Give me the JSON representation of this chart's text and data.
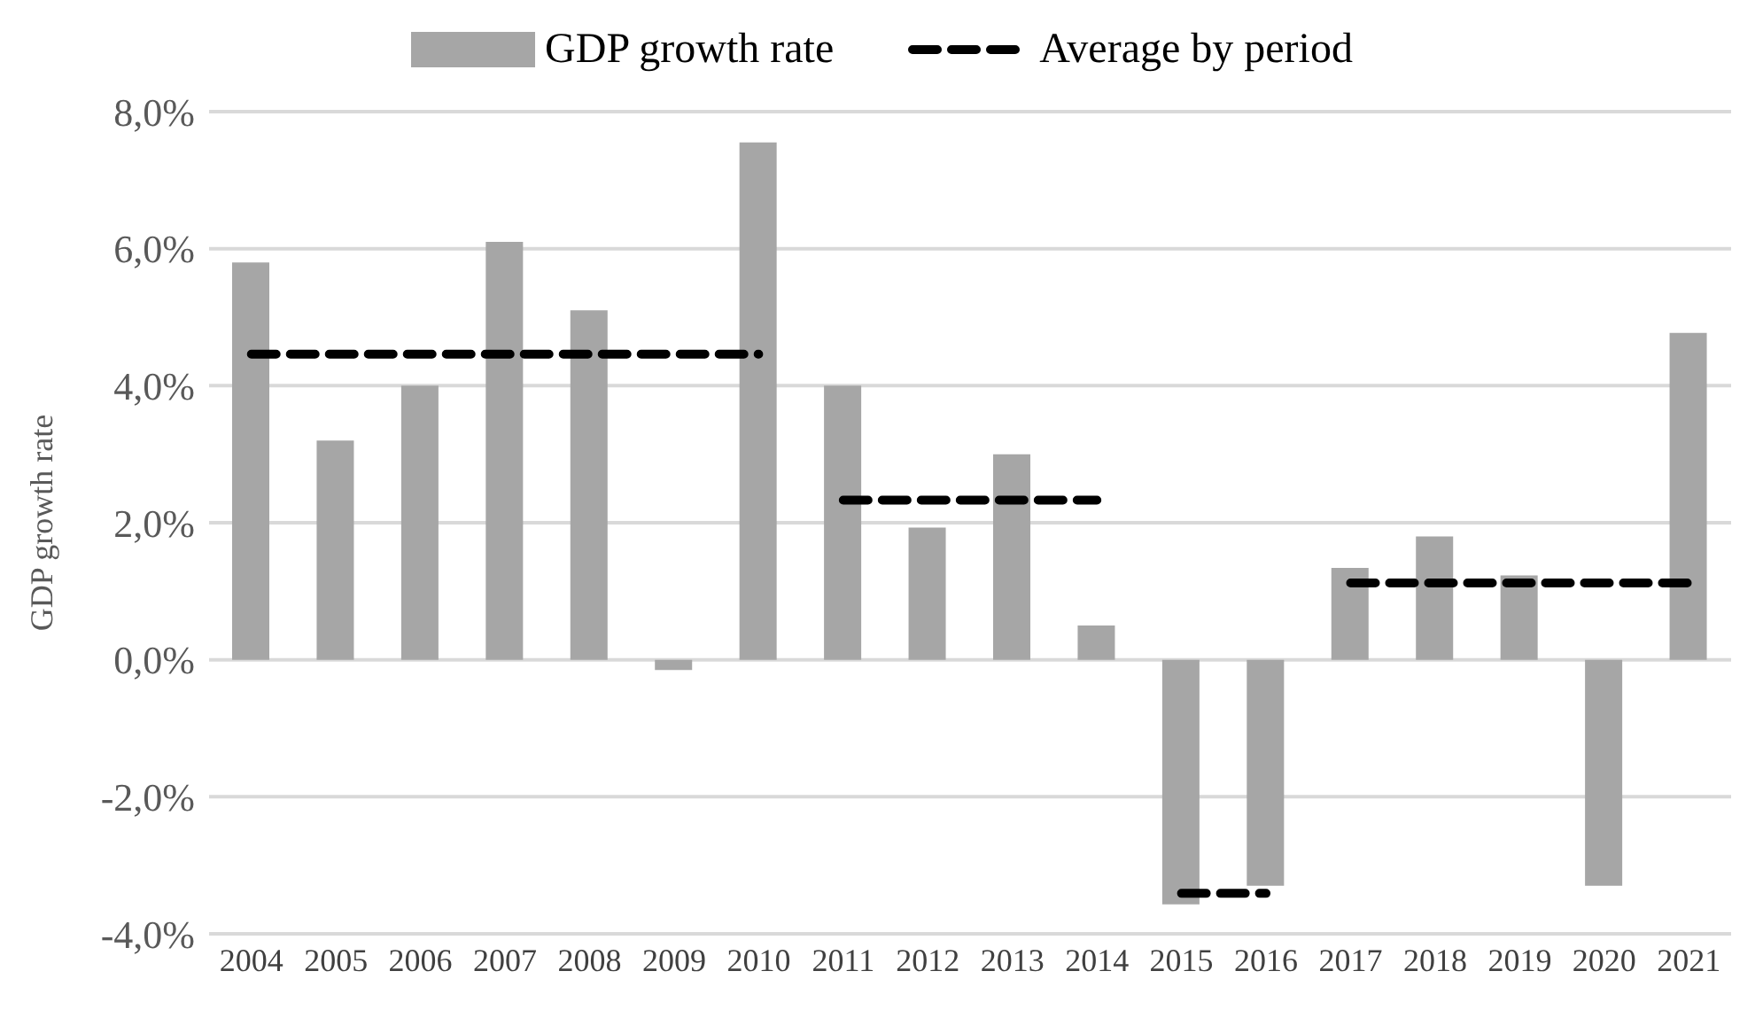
{
  "chart_data": {
    "type": "bar",
    "ylabel": "GDP growth rate",
    "categories": [
      "2004",
      "2005",
      "2006",
      "2007",
      "2008",
      "2009",
      "2010",
      "2011",
      "2012",
      "2013",
      "2014",
      "2015",
      "2016",
      "2017",
      "2018",
      "2019",
      "2020",
      "2021"
    ],
    "series": [
      {
        "name": "GDP growth rate",
        "color": "#a6a6a6",
        "values": [
          5.8,
          3.2,
          4.0,
          6.1,
          5.1,
          -0.15,
          7.55,
          4.0,
          1.93,
          3.0,
          0.5,
          -3.57,
          -3.3,
          1.34,
          1.8,
          1.23,
          -3.3,
          4.77
        ]
      },
      {
        "name": "Average by period",
        "type": "line",
        "color": "#000000",
        "line_style": "dashed",
        "values": [
          4.46,
          4.46,
          4.46,
          4.46,
          4.46,
          4.46,
          4.46,
          null,
          null,
          null,
          null,
          null,
          null,
          null,
          null,
          null,
          null,
          null
        ]
      },
      {
        "type": "line",
        "color": "#000000",
        "line_style": "dashed",
        "values": [
          null,
          null,
          null,
          null,
          null,
          null,
          null,
          2.33,
          2.33,
          2.33,
          2.33,
          null,
          null,
          null,
          null,
          null,
          null,
          null
        ]
      },
      {
        "type": "line",
        "color": "#000000",
        "line_style": "dashed",
        "values": [
          null,
          null,
          null,
          null,
          null,
          null,
          null,
          null,
          null,
          null,
          null,
          -3.41,
          -3.41,
          null,
          null,
          null,
          null,
          null
        ]
      },
      {
        "type": "line",
        "color": "#000000",
        "line_style": "dashed",
        "values": [
          null,
          null,
          null,
          null,
          null,
          null,
          null,
          null,
          null,
          null,
          null,
          null,
          null,
          1.12,
          1.12,
          1.12,
          1.12,
          1.12
        ]
      }
    ],
    "ylim": [
      -4,
      8
    ],
    "yticks": [
      {
        "value": -4,
        "label": "-4,0%"
      },
      {
        "value": -2,
        "label": "-2,0%"
      },
      {
        "value": 0,
        "label": "0,0%"
      },
      {
        "value": 2,
        "label": "2,0%"
      },
      {
        "value": 4,
        "label": "4,0%"
      },
      {
        "value": 6,
        "label": "6,0%"
      },
      {
        "value": 8,
        "label": "8,0%"
      }
    ],
    "grid": "y",
    "legend": "top"
  }
}
